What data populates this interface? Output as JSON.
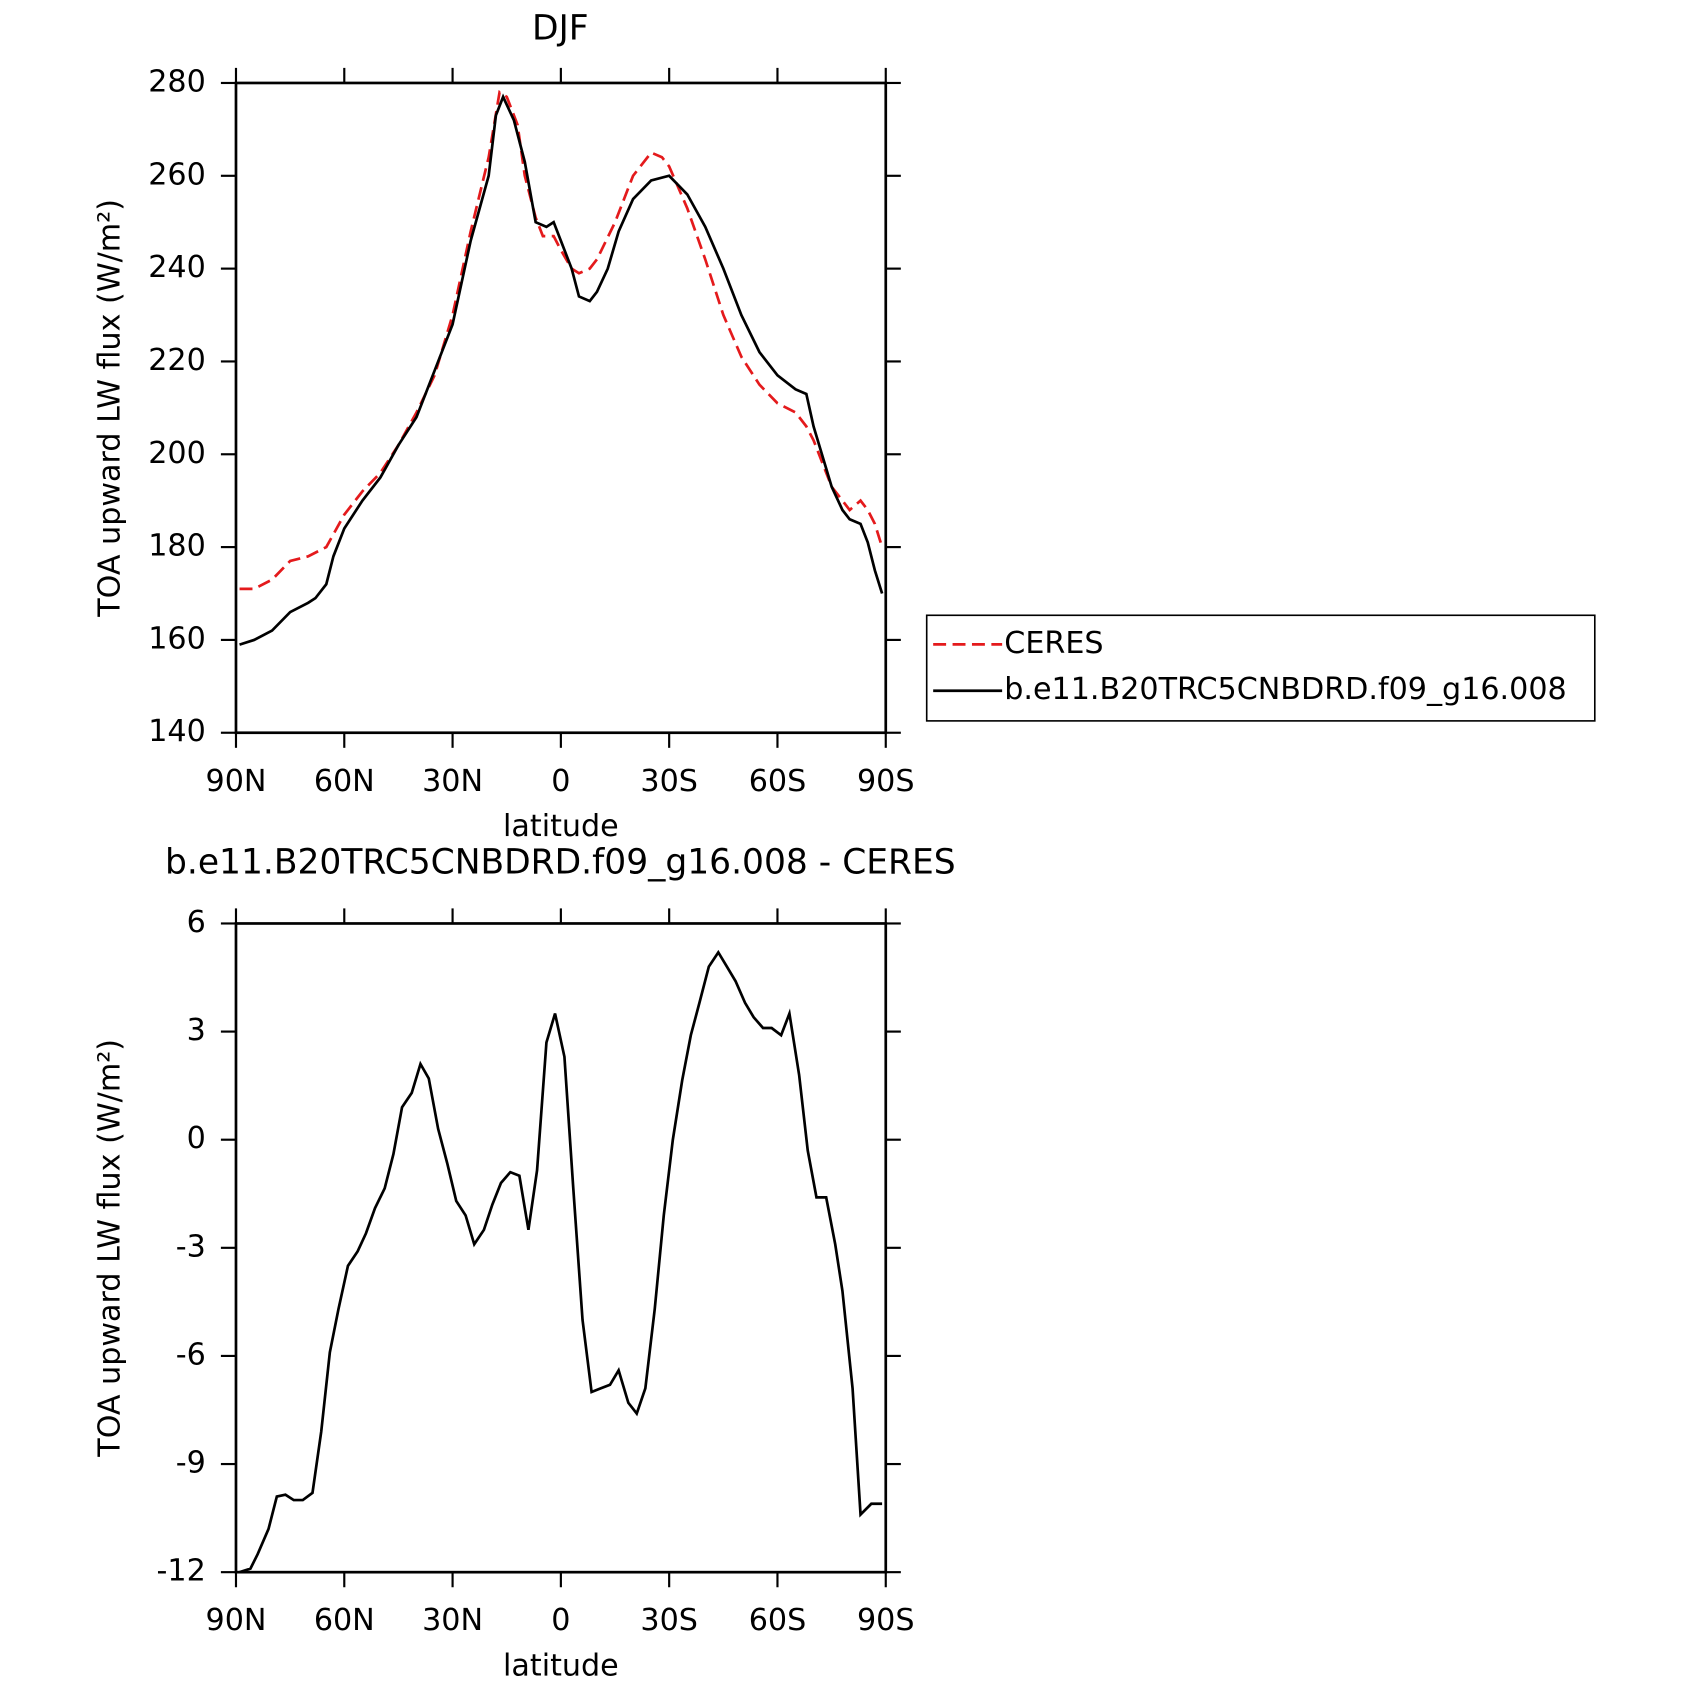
{
  "chart_data": [
    {
      "type": "line",
      "title": "DJF",
      "xlabel": "latitude",
      "ylabel": "TOA upward LW flux (W/m²)",
      "xlim": [
        90,
        -90
      ],
      "xticks": [
        {
          "value": 90,
          "label": "90N"
        },
        {
          "value": 60,
          "label": "60N"
        },
        {
          "value": 30,
          "label": "30N"
        },
        0,
        {
          "value": -30,
          "label": "30S"
        },
        {
          "value": -60,
          "label": "60S"
        },
        {
          "value": -90,
          "label": "90S"
        }
      ],
      "ylim": [
        140,
        280
      ],
      "yticks": [
        140,
        160,
        180,
        200,
        220,
        240,
        260,
        280
      ],
      "legend": "right",
      "series": [
        {
          "name": "CERES",
          "color": "#e41a1c",
          "linestyle": "dashed",
          "x": [
            89,
            85,
            80,
            75,
            70,
            65,
            60,
            55,
            50,
            45,
            40,
            35,
            30,
            25,
            20,
            17,
            15,
            12,
            10,
            7,
            5,
            2,
            0,
            -3,
            -5,
            -8,
            -10,
            -15,
            -20,
            -25,
            -28,
            -30,
            -35,
            -40,
            -45,
            -50,
            -55,
            -60,
            -65,
            -68,
            -70,
            -75,
            -78,
            -80,
            -83,
            -85,
            -87,
            -89
          ],
          "values": [
            171,
            171,
            173,
            177,
            178,
            180,
            187,
            192,
            196,
            202,
            209,
            217,
            230,
            248,
            264,
            278,
            277,
            271,
            260,
            251,
            247,
            247,
            244,
            240,
            239,
            240,
            242,
            250,
            260,
            265,
            264,
            262,
            253,
            242,
            230,
            221,
            215,
            211,
            209,
            206,
            203,
            193,
            190,
            188,
            190,
            188,
            185,
            180
          ]
        },
        {
          "name": "b.e11.B20TRC5CNBDRD.f09_g16.008",
          "color": "#000000",
          "linestyle": "solid",
          "x": [
            89,
            85,
            80,
            75,
            70,
            68,
            65,
            63,
            60,
            55,
            50,
            45,
            40,
            35,
            30,
            25,
            20,
            18,
            16,
            13,
            10,
            7,
            4,
            2,
            0,
            -3,
            -5,
            -8,
            -10,
            -13,
            -16,
            -20,
            -25,
            -30,
            -35,
            -40,
            -45,
            -50,
            -55,
            -60,
            -65,
            -68,
            -70,
            -75,
            -78,
            -80,
            -83,
            -85,
            -87,
            -89
          ],
          "values": [
            159,
            160,
            162,
            166,
            168,
            169,
            172,
            178,
            184,
            190,
            195,
            202,
            208,
            218,
            228,
            246,
            260,
            273,
            277,
            272,
            263,
            250,
            249,
            250,
            246,
            240,
            234,
            233,
            235,
            240,
            248,
            255,
            259,
            260,
            256,
            249,
            240,
            230,
            222,
            217,
            214,
            213,
            206,
            193,
            188,
            186,
            185,
            181,
            175,
            170
          ]
        }
      ]
    },
    {
      "type": "line",
      "title": "b.e11.B20TRC5CNBDRD.f09_g16.008 - CERES",
      "xlabel": "latitude",
      "ylabel": "TOA upward LW flux (W/m²)",
      "xlim": [
        90,
        -90
      ],
      "xticks": [
        {
          "value": 90,
          "label": "90N"
        },
        {
          "value": 60,
          "label": "60N"
        },
        {
          "value": 30,
          "label": "30N"
        },
        0,
        {
          "value": -30,
          "label": "30S"
        },
        {
          "value": -60,
          "label": "60S"
        },
        {
          "value": -90,
          "label": "90S"
        }
      ],
      "ylim": [
        -12,
        6
      ],
      "yticks": [
        -12,
        -9,
        -6,
        -3,
        0,
        3,
        6
      ],
      "series": [
        {
          "color": "#000000",
          "linestyle": "solid",
          "x": [
            89,
            86,
            84,
            81,
            78.7,
            76.3,
            74,
            71.5,
            68.8,
            66.4,
            64,
            61.6,
            59,
            56.3,
            54,
            51.5,
            48.8,
            46.4,
            44,
            41.3,
            38.9,
            36.6,
            34,
            31.5,
            29,
            26.4,
            24,
            21.3,
            19,
            16.6,
            14,
            11.5,
            9,
            6.6,
            4,
            1.6,
            -1,
            -3.4,
            -6,
            -8.5,
            -11,
            -13.6,
            -16,
            -18.7,
            -21,
            -23.4,
            -26,
            -28.5,
            -31,
            -33.6,
            -36,
            -38.4,
            -41,
            -43.6,
            -46,
            -48.4,
            -51,
            -53.4,
            -56,
            -58.4,
            -61,
            -63.3,
            -66,
            -68.4,
            -70.8,
            -73.5,
            -76,
            -78,
            -80.8,
            -83,
            -86,
            -89
          ],
          "values": [
            -12,
            -11.9,
            -11.5,
            -10.8,
            -9.9,
            -9.85,
            -10,
            -10,
            -9.8,
            -8.1,
            -5.9,
            -4.7,
            -3.5,
            -3.1,
            -2.6,
            -1.9,
            -1.35,
            -0.4,
            0.9,
            1.3,
            2.1,
            1.7,
            0.3,
            -0.65,
            -1.7,
            -2.1,
            -2.9,
            -2.5,
            -1.8,
            -1.2,
            -0.9,
            -1,
            -2.5,
            -0.85,
            2.7,
            3.5,
            2.3,
            -1.3,
            -5,
            -7,
            -6.9,
            -6.8,
            -6.4,
            -7.3,
            -7.6,
            -6.9,
            -4.7,
            -2.1,
            0,
            1.65,
            2.9,
            3.8,
            4.8,
            5.2,
            4.8,
            4.4,
            3.8,
            3.4,
            3.1,
            3.1,
            2.9,
            3.5,
            1.8,
            -0.3,
            -1.6,
            -1.6,
            -2.9,
            -4.2,
            -6.9,
            -10.4,
            -10.1,
            -10.1
          ]
        }
      ]
    }
  ]
}
